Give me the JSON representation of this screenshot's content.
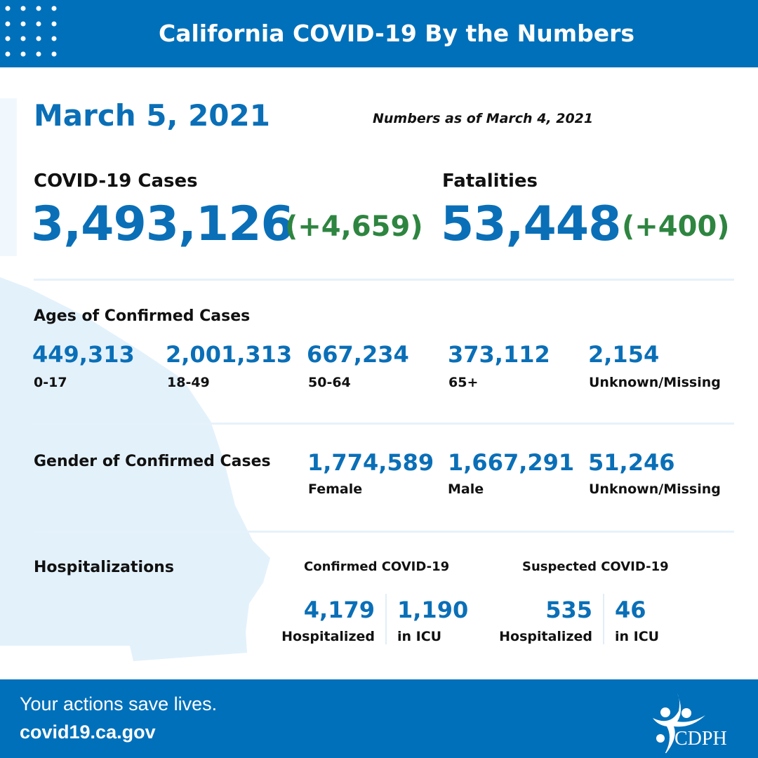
{
  "header": {
    "title": "California COVID-19 By the Numbers"
  },
  "date": "March 5, 2021",
  "as_of": "Numbers as of March 4, 2021",
  "cases": {
    "label": "COVID-19 Cases",
    "total": "3,493,126",
    "change": "(+4,659)"
  },
  "fatalities": {
    "label": "Fatalities",
    "total": "53,448",
    "change": "(+400)"
  },
  "ages": {
    "label": "Ages of Confirmed Cases",
    "items": [
      {
        "value": "449,313",
        "label": "0-17"
      },
      {
        "value": "2,001,313",
        "label": "18-49"
      },
      {
        "value": "667,234",
        "label": "50-64"
      },
      {
        "value": "373,112",
        "label": "65+"
      },
      {
        "value": "2,154",
        "label": "Unknown/Missing"
      }
    ]
  },
  "gender": {
    "label": "Gender of Confirmed Cases",
    "items": [
      {
        "value": "1,774,589",
        "label": "Female"
      },
      {
        "value": "1,667,291",
        "label": "Male"
      },
      {
        "value": "51,246",
        "label": "Unknown/Missing"
      }
    ]
  },
  "hosp": {
    "label": "Hospitalizations",
    "confirmed": {
      "label": "Confirmed COVID-19",
      "hosp_value": "4,179",
      "hosp_label": "Hospitalized",
      "icu_value": "1,190",
      "icu_label": "in ICU"
    },
    "suspected": {
      "label": "Suspected COVID-19",
      "hosp_value": "535",
      "hosp_label": "Hospitalized",
      "icu_value": "46",
      "icu_label": "in ICU"
    }
  },
  "footer": {
    "tagline": "Your actions save lives.",
    "url": "covid19.ca.gov",
    "logo_text": "CDPH"
  },
  "colors": {
    "brand": "#0070BA",
    "number": "#0A6FB7",
    "increase": "#2E8540",
    "map": "#E3F1FB"
  }
}
